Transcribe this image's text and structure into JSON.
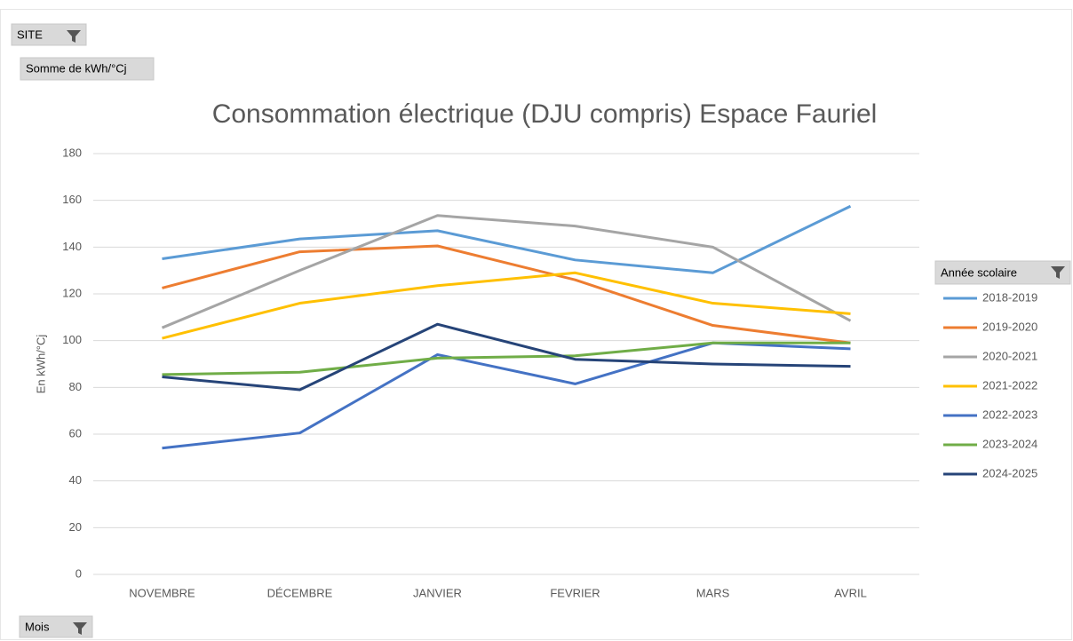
{
  "pivot_fields": {
    "filter": "SITE",
    "value": "Somme de kWh/°Cj",
    "axis": "Mois"
  },
  "chart_data": {
    "type": "line",
    "title": "Consommation électrique (DJU compris) Espace Fauriel",
    "y_label": "En kWh/°Cj",
    "legend_title": "Année scolaire",
    "legend": "right",
    "grid": true,
    "categories": [
      "NOVEMBRE",
      "DÉCEMBRE",
      "JANVIER",
      "FEVRIER",
      "MARS",
      "AVRIL"
    ],
    "ylim": [
      0,
      180
    ],
    "yticks": [
      0,
      20,
      40,
      60,
      80,
      100,
      120,
      140,
      160,
      180
    ],
    "series": [
      {
        "name": "2018-2019",
        "color": "#5b9bd5",
        "values": [
          135,
          143.5,
          147,
          134.5,
          129,
          157.5
        ]
      },
      {
        "name": "2019-2020",
        "color": "#ed7d31",
        "values": [
          122.5,
          138,
          140.5,
          126,
          106.5,
          99
        ]
      },
      {
        "name": "2020-2021",
        "color": "#a5a5a5",
        "values": [
          105.5,
          130,
          153.5,
          149,
          140,
          108.5
        ]
      },
      {
        "name": "2021-2022",
        "color": "#ffc000",
        "values": [
          101,
          116,
          123.5,
          129,
          116,
          111.5
        ]
      },
      {
        "name": "2022-2023",
        "color": "#4472c4",
        "values": [
          54,
          60.5,
          94,
          81.5,
          99,
          96.5
        ]
      },
      {
        "name": "2023-2024",
        "color": "#70ad47",
        "values": [
          85.5,
          86.5,
          92.5,
          93.5,
          99,
          99
        ]
      },
      {
        "name": "2024-2025",
        "color": "#264478",
        "values": [
          84.5,
          79,
          107,
          92,
          90,
          89
        ]
      }
    ]
  }
}
